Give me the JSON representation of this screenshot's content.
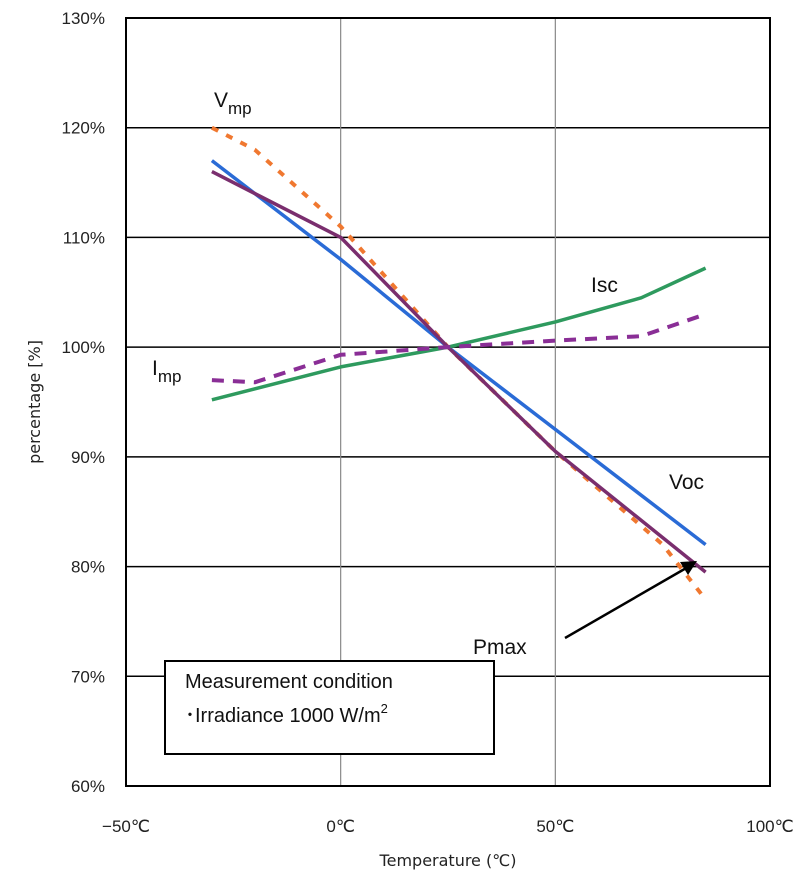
{
  "chart_data": {
    "type": "line",
    "title": "",
    "xlabel": "Temperature (℃)",
    "ylabel": "percentage [%]",
    "xlim": [
      -50,
      100
    ],
    "ylim": [
      60,
      130
    ],
    "x_tick_labels": [
      "−50℃",
      "0℃",
      "50℃",
      "100℃"
    ],
    "y_tick_labels": [
      "60%",
      "70%",
      "80%",
      "90%",
      "100%",
      "110%",
      "120%",
      "130%"
    ],
    "grid": true,
    "series": [
      {
        "name": "Vmp",
        "label_main": "V",
        "label_sub": "mp",
        "color": "#f07830",
        "style": "dotted",
        "x": [
          -30,
          -20,
          0,
          25,
          50,
          75,
          85
        ],
        "y": [
          120,
          118,
          111,
          100,
          90.5,
          82,
          77
        ]
      },
      {
        "name": "Voc",
        "color": "#2a6bd6",
        "style": "solid",
        "x": [
          -30,
          0,
          25,
          50,
          85
        ],
        "y": [
          117,
          108,
          100,
          92.5,
          82
        ]
      },
      {
        "name": "Pmax",
        "color": "#7a2e6e",
        "style": "solid",
        "x": [
          -30,
          0,
          25,
          50,
          85
        ],
        "y": [
          116,
          110,
          100,
          90.5,
          79.5
        ]
      },
      {
        "name": "Isc",
        "color": "#2e9a5e",
        "style": "solid",
        "x": [
          -30,
          0,
          25,
          50,
          70,
          85
        ],
        "y": [
          95.2,
          98.2,
          100,
          102.3,
          104.5,
          107.2
        ]
      },
      {
        "name": "Imp",
        "label_main": "I",
        "label_sub": "mp",
        "color": "#8a2e96",
        "style": "dashed",
        "x": [
          -30,
          -20,
          0,
          25,
          50,
          70,
          85
        ],
        "y": [
          97,
          96.8,
          99.3,
          100,
          100.6,
          101,
          103
        ]
      }
    ],
    "annotations": {
      "note_title": "Measurement condition",
      "note_body": "･Irradiance 1000 W/m",
      "note_sup": "2"
    }
  }
}
